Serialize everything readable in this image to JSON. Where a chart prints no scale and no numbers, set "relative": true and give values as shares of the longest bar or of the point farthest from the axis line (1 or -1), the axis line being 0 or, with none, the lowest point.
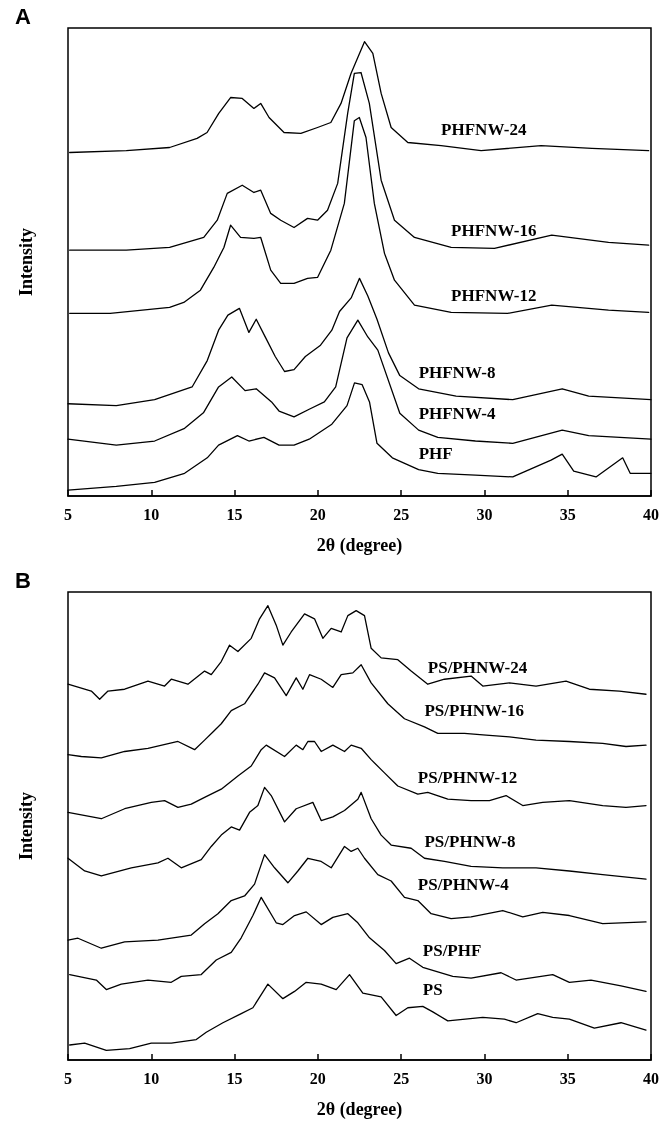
{
  "chart_data": [
    {
      "type": "line",
      "title": "A",
      "xlabel": "2θ (degree)",
      "ylabel": "Intensity",
      "relative": true,
      "xlim": [
        5,
        40
      ],
      "xticks": [
        5,
        10,
        15,
        20,
        25,
        30,
        35,
        40
      ],
      "marker": "none",
      "line_style": "solid",
      "series": [
        {
          "name": "PHFNW-24",
          "color": "#000000",
          "x": [
            5.1,
            8.5,
            11.1,
            12.75,
            13.35,
            14.05,
            14.76,
            15.46,
            16.16,
            16.57,
            17.07,
            17.97,
            18.98,
            19.98,
            20.78,
            21.39,
            21.99,
            22.8,
            23.3,
            23.8,
            24.4,
            25.4,
            27.4,
            29.8,
            33.4,
            36.45,
            39.86
          ],
          "values": [
            0.756,
            0.76,
            0.767,
            0.787,
            0.8,
            0.842,
            0.877,
            0.875,
            0.853,
            0.864,
            0.833,
            0.8,
            0.798,
            0.811,
            0.822,
            0.864,
            0.93,
            1.0,
            0.974,
            0.886,
            0.811,
            0.778,
            0.771,
            0.76,
            0.771,
            0.765,
            0.76
          ]
        },
        {
          "name": "PHFNW-16",
          "color": "#000000",
          "x": [
            5.1,
            8.5,
            11.1,
            13.15,
            13.96,
            14.56,
            15.46,
            16.16,
            16.57,
            17.17,
            17.77,
            18.57,
            19.38,
            19.98,
            20.58,
            21.19,
            21.79,
            22.19,
            22.59,
            23.09,
            23.8,
            24.6,
            25.8,
            28.0,
            30.6,
            34.04,
            37.45,
            39.86
          ],
          "values": [
            0.541,
            0.541,
            0.547,
            0.569,
            0.607,
            0.666,
            0.684,
            0.668,
            0.673,
            0.622,
            0.607,
            0.591,
            0.611,
            0.607,
            0.629,
            0.688,
            0.842,
            0.93,
            0.932,
            0.864,
            0.695,
            0.607,
            0.569,
            0.547,
            0.545,
            0.574,
            0.558,
            0.552
          ]
        },
        {
          "name": "PHFNW-12",
          "color": "#000000",
          "x": [
            5.1,
            7.53,
            11.1,
            11.95,
            12.95,
            13.75,
            14.36,
            14.76,
            15.36,
            16.16,
            16.57,
            17.17,
            17.77,
            18.57,
            19.38,
            19.98,
            20.78,
            21.59,
            22.19,
            22.49,
            22.89,
            23.39,
            24.0,
            24.6,
            25.8,
            28.0,
            31.4,
            34.04,
            37.45,
            39.86
          ],
          "values": [
            0.402,
            0.402,
            0.415,
            0.426,
            0.453,
            0.503,
            0.547,
            0.596,
            0.569,
            0.567,
            0.569,
            0.497,
            0.468,
            0.468,
            0.479,
            0.481,
            0.541,
            0.644,
            0.826,
            0.833,
            0.789,
            0.644,
            0.534,
            0.475,
            0.42,
            0.404,
            0.402,
            0.42,
            0.409,
            0.404
          ]
        },
        {
          "name": "PHFNW-8",
          "color": "#000000",
          "x": [
            5,
            7.9,
            10.2,
            12.45,
            13.36,
            14.04,
            14.6,
            15.29,
            15.86,
            16.3,
            16.87,
            17.44,
            18.0,
            18.57,
            19.25,
            20.16,
            20.84,
            21.3,
            22.0,
            22.5,
            23.0,
            23.55,
            24.24,
            24.92,
            26.05,
            28.3,
            31.7,
            34.67,
            36.26,
            40
          ],
          "values": [
            0.203,
            0.199,
            0.212,
            0.24,
            0.298,
            0.365,
            0.398,
            0.413,
            0.36,
            0.389,
            0.348,
            0.307,
            0.274,
            0.278,
            0.307,
            0.332,
            0.365,
            0.406,
            0.436,
            0.479,
            0.44,
            0.389,
            0.315,
            0.265,
            0.236,
            0.22,
            0.212,
            0.236,
            0.22,
            0.212
          ]
        },
        {
          "name": "PHFNW-4",
          "color": "#000000",
          "x": [
            5,
            7.9,
            10.2,
            12.0,
            13.13,
            14.04,
            14.83,
            15.63,
            16.3,
            17.22,
            17.67,
            18.57,
            19.48,
            20.39,
            21.07,
            21.75,
            22.4,
            23.0,
            23.6,
            24.92,
            26.05,
            27.2,
            29.46,
            31.7,
            34.67,
            36.26,
            40
          ],
          "values": [
            0.125,
            0.112,
            0.121,
            0.149,
            0.183,
            0.24,
            0.262,
            0.232,
            0.236,
            0.207,
            0.187,
            0.174,
            0.191,
            0.207,
            0.24,
            0.348,
            0.387,
            0.35,
            0.321,
            0.182,
            0.145,
            0.129,
            0.121,
            0.116,
            0.145,
            0.133,
            0.125
          ]
        },
        {
          "name": "PHF",
          "color": "#000000",
          "x": [
            5,
            7.9,
            10.2,
            12.0,
            13.36,
            14.04,
            15.17,
            15.86,
            16.76,
            17.67,
            18.57,
            19.48,
            20.84,
            21.75,
            22.2,
            22.66,
            23.1,
            23.55,
            24.47,
            26.05,
            27.2,
            29.46,
            31.7,
            34.0,
            34.67,
            35.36,
            36.7,
            38.3,
            38.75,
            40
          ],
          "values": [
            0.013,
            0.021,
            0.03,
            0.05,
            0.084,
            0.112,
            0.133,
            0.121,
            0.129,
            0.112,
            0.112,
            0.125,
            0.158,
            0.199,
            0.249,
            0.245,
            0.207,
            0.116,
            0.084,
            0.058,
            0.05,
            0.046,
            0.042,
            0.079,
            0.092,
            0.055,
            0.042,
            0.084,
            0.05,
            0.05
          ]
        }
      ]
    },
    {
      "type": "line",
      "title": "B",
      "xlabel": "2θ (degree)",
      "ylabel": "Intensity",
      "relative": true,
      "xlim": [
        5,
        40
      ],
      "xticks": [
        5,
        10,
        15,
        20,
        25,
        30,
        35,
        40
      ],
      "marker": "none",
      "line_style": "solid",
      "series": [
        {
          "name": "PS/PHNW-24",
          "color": "#000000",
          "x": [
            5,
            6.4,
            6.9,
            7.4,
            8.4,
            9.8,
            10.8,
            11.2,
            12.2,
            13.2,
            13.6,
            14.2,
            14.7,
            15.2,
            16.0,
            16.5,
            17.0,
            17.5,
            17.9,
            18.4,
            19.2,
            19.8,
            20.3,
            20.8,
            21.4,
            21.8,
            22.3,
            22.8,
            23.2,
            23.8,
            24.8,
            25.6,
            26.6,
            27.6,
            29.2,
            29.9,
            31.5,
            33.1,
            34.9,
            36.3,
            38.1,
            39.7
          ],
          "values": [
            0.827,
            0.812,
            0.794,
            0.812,
            0.816,
            0.834,
            0.823,
            0.838,
            0.827,
            0.856,
            0.848,
            0.877,
            0.913,
            0.899,
            0.928,
            0.971,
            1.0,
            0.957,
            0.913,
            0.942,
            0.982,
            0.971,
            0.928,
            0.95,
            0.942,
            0.978,
            0.989,
            0.978,
            0.906,
            0.885,
            0.881,
            0.856,
            0.827,
            0.838,
            0.845,
            0.823,
            0.83,
            0.823,
            0.834,
            0.816,
            0.812,
            0.805
          ]
        },
        {
          "name": "PS/PHNW-16",
          "color": "#000000",
          "x": [
            5,
            5.8,
            7.0,
            8.4,
            9.8,
            11.6,
            12.6,
            13.2,
            13.7,
            14.2,
            14.8,
            15.6,
            16.4,
            16.8,
            17.4,
            18.1,
            18.7,
            19.1,
            19.5,
            20.2,
            20.9,
            21.4,
            22.1,
            22.6,
            23.2,
            24.2,
            25.2,
            26.4,
            27.2,
            28.8,
            30.1,
            31.5,
            33.1,
            35.1,
            37.1,
            38.5,
            39.7
          ],
          "values": [
            0.672,
            0.668,
            0.665,
            0.679,
            0.686,
            0.701,
            0.683,
            0.704,
            0.722,
            0.74,
            0.769,
            0.784,
            0.827,
            0.852,
            0.841,
            0.802,
            0.841,
            0.816,
            0.848,
            0.838,
            0.82,
            0.848,
            0.852,
            0.87,
            0.83,
            0.784,
            0.751,
            0.733,
            0.719,
            0.719,
            0.715,
            0.711,
            0.704,
            0.701,
            0.697,
            0.69,
            0.693
          ]
        },
        {
          "name": "PS/PHNW-12",
          "color": "#000000",
          "x": [
            5,
            7.0,
            8.4,
            10.0,
            10.8,
            11.6,
            12.4,
            13.2,
            14.2,
            15.2,
            16.0,
            16.6,
            16.9,
            18.0,
            18.7,
            19.1,
            19.4,
            19.8,
            20.2,
            20.9,
            21.6,
            22.0,
            22.6,
            23.2,
            24.0,
            24.8,
            26.0,
            26.6,
            27.8,
            29.2,
            30.3,
            31.3,
            32.3,
            33.5,
            35.1,
            37.1,
            38.5,
            39.7
          ],
          "values": [
            0.545,
            0.531,
            0.553,
            0.567,
            0.571,
            0.556,
            0.563,
            0.578,
            0.596,
            0.625,
            0.647,
            0.683,
            0.693,
            0.668,
            0.693,
            0.683,
            0.701,
            0.701,
            0.679,
            0.693,
            0.679,
            0.693,
            0.686,
            0.661,
            0.632,
            0.603,
            0.585,
            0.589,
            0.574,
            0.571,
            0.571,
            0.582,
            0.56,
            0.567,
            0.571,
            0.56,
            0.556,
            0.56
          ]
        },
        {
          "name": "PS/PHNW-8",
          "color": "#000000",
          "x": [
            5,
            6.0,
            7.0,
            8.8,
            10.4,
            11.0,
            11.8,
            13.0,
            13.6,
            14.2,
            14.8,
            15.3,
            15.9,
            16.4,
            16.8,
            17.2,
            18.0,
            18.7,
            19.7,
            20.2,
            20.9,
            21.6,
            22.4,
            22.6,
            23.2,
            23.8,
            24.4,
            25.6,
            26.4,
            27.6,
            29.2,
            31.1,
            33.1,
            35.1,
            37.1,
            39.7
          ],
          "values": [
            0.444,
            0.416,
            0.405,
            0.423,
            0.434,
            0.444,
            0.423,
            0.441,
            0.47,
            0.495,
            0.513,
            0.506,
            0.545,
            0.56,
            0.6,
            0.582,
            0.524,
            0.553,
            0.567,
            0.527,
            0.535,
            0.549,
            0.574,
            0.589,
            0.531,
            0.495,
            0.473,
            0.466,
            0.444,
            0.437,
            0.426,
            0.423,
            0.423,
            0.416,
            0.408,
            0.398
          ]
        },
        {
          "name": "PS/PHNW-4",
          "color": "#000000",
          "x": [
            5,
            5.6,
            7.0,
            8.4,
            10.4,
            12.4,
            13.2,
            14.0,
            14.8,
            15.6,
            16.2,
            16.8,
            17.4,
            18.2,
            18.8,
            19.4,
            20.2,
            20.8,
            21.6,
            22.0,
            22.4,
            22.8,
            23.6,
            24.4,
            25.2,
            26.0,
            26.8,
            28.0,
            29.2,
            31.1,
            32.3,
            33.5,
            35.1,
            37.1,
            39.7
          ],
          "values": [
            0.264,
            0.268,
            0.246,
            0.26,
            0.264,
            0.275,
            0.3,
            0.322,
            0.351,
            0.361,
            0.387,
            0.452,
            0.423,
            0.39,
            0.416,
            0.444,
            0.437,
            0.423,
            0.47,
            0.459,
            0.466,
            0.444,
            0.408,
            0.394,
            0.358,
            0.351,
            0.322,
            0.311,
            0.315,
            0.329,
            0.315,
            0.325,
            0.318,
            0.3,
            0.304
          ]
        },
        {
          "name": "PS/PHF",
          "color": "#000000",
          "x": [
            5.1,
            6.7,
            7.3,
            8.2,
            9.8,
            11.2,
            11.8,
            13.0,
            13.9,
            14.8,
            15.4,
            16.1,
            16.6,
            17.5,
            17.9,
            18.6,
            19.3,
            20.2,
            20.9,
            21.8,
            22.4,
            23.1,
            24.0,
            24.7,
            25.5,
            26.3,
            28.1,
            29.2,
            31.0,
            31.9,
            34.1,
            35.1,
            36.4,
            38.2,
            39.7
          ],
          "values": [
            0.188,
            0.176,
            0.155,
            0.167,
            0.176,
            0.171,
            0.184,
            0.188,
            0.22,
            0.237,
            0.269,
            0.318,
            0.358,
            0.302,
            0.298,
            0.318,
            0.326,
            0.298,
            0.314,
            0.322,
            0.302,
            0.269,
            0.241,
            0.212,
            0.224,
            0.204,
            0.184,
            0.18,
            0.192,
            0.176,
            0.188,
            0.171,
            0.176,
            0.163,
            0.151
          ]
        },
        {
          "name": "PS",
          "color": "#000000",
          "x": [
            5.1,
            6.0,
            7.3,
            8.7,
            10.0,
            11.2,
            12.7,
            13.3,
            14.3,
            15.4,
            16.1,
            17.0,
            17.9,
            18.6,
            19.3,
            20.2,
            21.1,
            21.9,
            22.7,
            23.8,
            24.7,
            25.4,
            26.3,
            26.9,
            27.8,
            29.9,
            31.2,
            31.9,
            33.2,
            34.1,
            35.1,
            36.6,
            38.2,
            39.7
          ],
          "values": [
            0.033,
            0.037,
            0.021,
            0.025,
            0.037,
            0.037,
            0.045,
            0.061,
            0.082,
            0.102,
            0.115,
            0.167,
            0.135,
            0.151,
            0.171,
            0.167,
            0.155,
            0.188,
            0.147,
            0.139,
            0.098,
            0.115,
            0.118,
            0.106,
            0.086,
            0.094,
            0.09,
            0.082,
            0.102,
            0.094,
            0.09,
            0.07,
            0.082,
            0.066
          ]
        }
      ]
    }
  ]
}
